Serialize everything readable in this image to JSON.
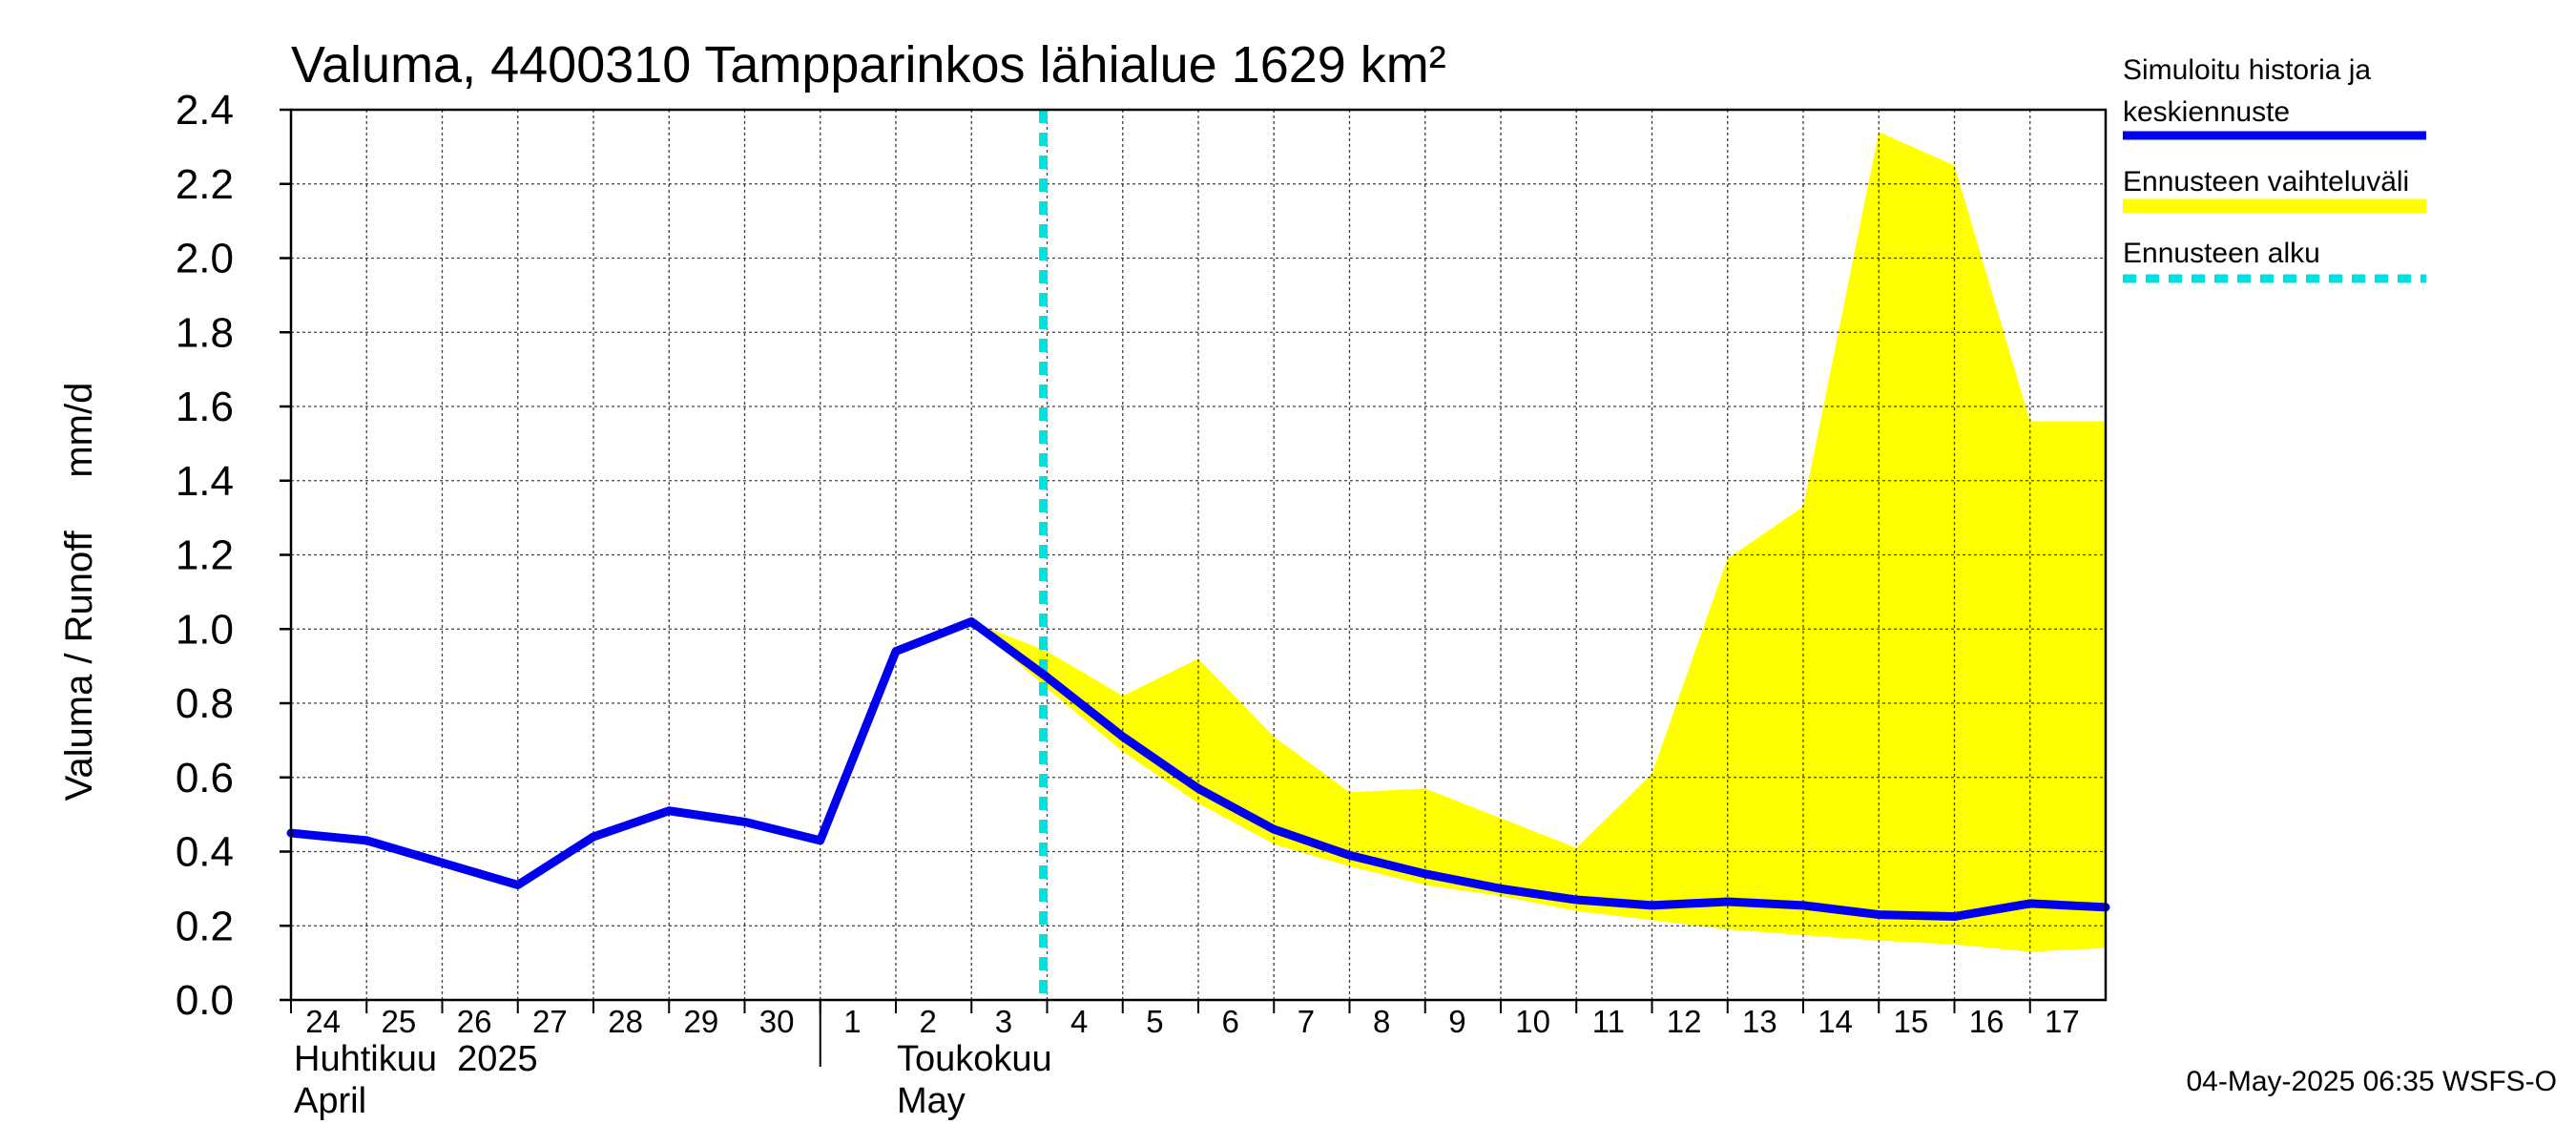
{
  "chart_data": {
    "type": "line",
    "title": "Valuma, 4400310 Tampparinkos lähialue 1629 km²",
    "ylabel": "Valuma / Runoff     mm/d",
    "ylim": [
      0,
      2.4
    ],
    "yticks": [
      "0.0",
      "0.2",
      "0.4",
      "0.6",
      "0.8",
      "1.0",
      "1.2",
      "1.4",
      "1.6",
      "1.8",
      "2.0",
      "2.2",
      "2.4"
    ],
    "x_ticks": [
      {
        "day": 24,
        "label": "24"
      },
      {
        "day": 25,
        "label": "25"
      },
      {
        "day": 26,
        "label": "26"
      },
      {
        "day": 27,
        "label": "27"
      },
      {
        "day": 28,
        "label": "28"
      },
      {
        "day": 29,
        "label": "29"
      },
      {
        "day": 30,
        "label": "30"
      },
      {
        "day": 31,
        "label": "1"
      },
      {
        "day": 32,
        "label": "2"
      },
      {
        "day": 33,
        "label": "3"
      },
      {
        "day": 34,
        "label": "4"
      },
      {
        "day": 35,
        "label": "5"
      },
      {
        "day": 36,
        "label": "6"
      },
      {
        "day": 37,
        "label": "7"
      },
      {
        "day": 38,
        "label": "8"
      },
      {
        "day": 39,
        "label": "9"
      },
      {
        "day": 40,
        "label": "10"
      },
      {
        "day": 41,
        "label": "11"
      },
      {
        "day": 42,
        "label": "12"
      },
      {
        "day": 43,
        "label": "13"
      },
      {
        "day": 44,
        "label": "14"
      },
      {
        "day": 45,
        "label": "15"
      },
      {
        "day": 46,
        "label": "16"
      },
      {
        "day": 47,
        "label": "17"
      }
    ],
    "month_labels": {
      "april_fi": "Huhtikuu  2025",
      "april_en": "April",
      "may_fi": "Toukokuu",
      "may_en": "May"
    },
    "series": [
      {
        "name": "Simuloitu historia ja keskiennuste",
        "color": "#0000ee",
        "points": [
          [
            24,
            0.45
          ],
          [
            25,
            0.43
          ],
          [
            26,
            0.37
          ],
          [
            27,
            0.31
          ],
          [
            28,
            0.44
          ],
          [
            29,
            0.51
          ],
          [
            30,
            0.48
          ],
          [
            31,
            0.43
          ],
          [
            32,
            0.94
          ],
          [
            33,
            1.02
          ],
          [
            34,
            0.87
          ],
          [
            35,
            0.71
          ],
          [
            36,
            0.57
          ],
          [
            37,
            0.46
          ],
          [
            38,
            0.39
          ],
          [
            39,
            0.34
          ],
          [
            40,
            0.3
          ],
          [
            41,
            0.27
          ],
          [
            42,
            0.255
          ],
          [
            43,
            0.265
          ],
          [
            44,
            0.255
          ],
          [
            45,
            0.23
          ],
          [
            46,
            0.225
          ],
          [
            47,
            0.26
          ],
          [
            48,
            0.25
          ]
        ]
      }
    ],
    "band": {
      "name": "Ennusteen vaihteluväli",
      "color": "#ffff00",
      "upper": [
        [
          33,
          1.02
        ],
        [
          34,
          0.94
        ],
        [
          35,
          0.82
        ],
        [
          36,
          0.92
        ],
        [
          37,
          0.71
        ],
        [
          38,
          0.56
        ],
        [
          39,
          0.57
        ],
        [
          40,
          0.49
        ],
        [
          41,
          0.41
        ],
        [
          42,
          0.61
        ],
        [
          43,
          1.19
        ],
        [
          44,
          1.33
        ],
        [
          45,
          2.34
        ],
        [
          46,
          2.25
        ],
        [
          47,
          1.56
        ],
        [
          48,
          1.56
        ]
      ],
      "lower": [
        [
          33,
          1.02
        ],
        [
          34,
          0.84
        ],
        [
          35,
          0.67
        ],
        [
          36,
          0.53
        ],
        [
          37,
          0.42
        ],
        [
          38,
          0.36
        ],
        [
          39,
          0.31
        ],
        [
          40,
          0.28
        ],
        [
          41,
          0.24
        ],
        [
          42,
          0.215
        ],
        [
          43,
          0.19
        ],
        [
          44,
          0.175
        ],
        [
          45,
          0.16
        ],
        [
          46,
          0.15
        ],
        [
          47,
          0.13
        ],
        [
          48,
          0.14
        ]
      ]
    },
    "forecast_start": {
      "name": "Ennusteen alku",
      "day": 33.95,
      "color": "#00e0e0"
    },
    "legend": [
      {
        "label_line1": "Simuloitu historia ja",
        "label_line2": "keskiennuste",
        "color": "#0000ee",
        "style": "solid"
      },
      {
        "label_line1": "Ennusteen vaihteluväli",
        "label_line2": "",
        "color": "#ffff00",
        "style": "band"
      },
      {
        "label_line1": "Ennusteen alku",
        "label_line2": "",
        "color": "#00e0e0",
        "style": "dashed"
      }
    ],
    "legend_position": "right",
    "grid": true,
    "footer": "04-May-2025 06:35 WSFS-O"
  }
}
